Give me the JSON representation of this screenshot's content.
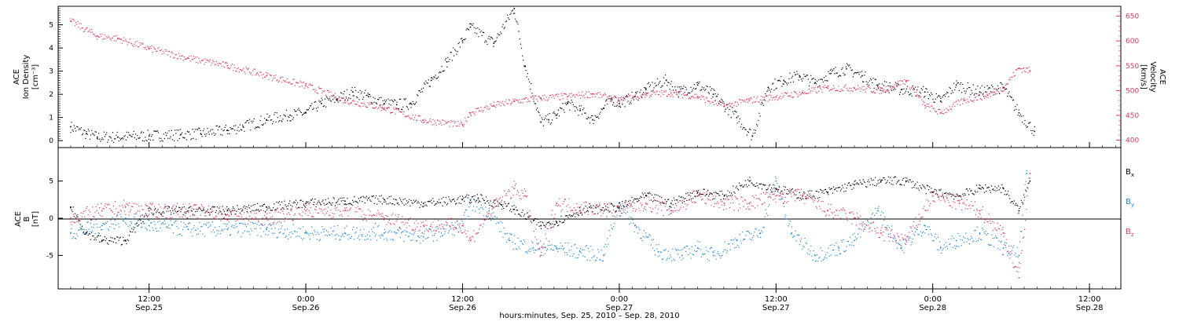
{
  "chart_data": [
    {
      "type": "scatter",
      "panel": "top",
      "ylabel_left": [
        "ACE",
        "Ion Density",
        "[cm⁻³]"
      ],
      "ylabel_right": [
        "ACE",
        "Velocity",
        "[km/s]"
      ],
      "ylim_left": [
        -0.3,
        5.8
      ],
      "ylim_right": [
        385,
        670
      ],
      "yticks_left": [
        "0",
        "1",
        "2",
        "3",
        "4",
        "5"
      ],
      "yticks_right": [
        "400",
        "450",
        "500",
        "550",
        "600",
        "650"
      ],
      "series": [
        {
          "color": "#000000",
          "axis": "left",
          "x": [
            -0.5,
            -0.4,
            -0.33,
            -0.2,
            0,
            0.2,
            0.33,
            0.5,
            0.6,
            0.75,
            0.9,
            1,
            1.1,
            1.2,
            1.3,
            1.4,
            1.5,
            1.58,
            1.67,
            1.8,
            1.9,
            2,
            2.05,
            2.2,
            2.33,
            2.4,
            2.5,
            2.55,
            2.6,
            2.67,
            2.75,
            2.83,
            2.9,
            2.95,
            3,
            3.1,
            3.17,
            3.3,
            3.38,
            3.5,
            3.6,
            3.75,
            3.85,
            3.95,
            4.05,
            4.15,
            4.25,
            4.35,
            4.45,
            4.55,
            4.65,
            4.8,
            4.95,
            5.05,
            5.15,
            5.3,
            5.45,
            5.55,
            5.65
          ],
          "values": [
            0.6,
            0.3,
            0.15,
            0.15,
            0.2,
            0.25,
            0.3,
            0.45,
            0.6,
            0.9,
            1.1,
            1.2,
            1.6,
            1.8,
            2.1,
            1.9,
            1.6,
            1.55,
            1.6,
            2.6,
            3.4,
            4.3,
            4.9,
            4.2,
            5.7,
            3.2,
            0.8,
            0.9,
            1.1,
            1.6,
            1.3,
            0.9,
            1.4,
            1.8,
            1.6,
            1.9,
            2.2,
            2.6,
            2.1,
            2.4,
            2.0,
            1.0,
            0.2,
            2.3,
            2.6,
            2.8,
            2.5,
            2.9,
            3.1,
            2.8,
            2.4,
            2.2,
            2.1,
            1.7,
            2.4,
            2.1,
            2.3,
            1.2,
            0.4
          ]
        },
        {
          "color": "#e8345f",
          "axis": "right",
          "x": [
            -0.5,
            -0.33,
            -0.2,
            0,
            0.25,
            0.5,
            0.75,
            1,
            1.25,
            1.5,
            1.75,
            2,
            2.05,
            2.2,
            2.33,
            2.5,
            2.67,
            2.83,
            3,
            3.17,
            3.33,
            3.5,
            3.67,
            3.83,
            4,
            4.17,
            4.33,
            4.5,
            4.67,
            4.83,
            4.95,
            5.05,
            5.2,
            5.35,
            5.45,
            5.55,
            5.62
          ],
          "values": [
            640,
            610,
            605,
            585,
            565,
            550,
            530,
            510,
            480,
            465,
            440,
            430,
            455,
            470,
            478,
            485,
            488,
            493,
            480,
            492,
            495,
            488,
            468,
            480,
            487,
            495,
            505,
            505,
            500,
            520,
            470,
            455,
            480,
            490,
            505,
            545,
            540
          ]
        }
      ]
    },
    {
      "type": "scatter",
      "panel": "bottom",
      "ylabel_left": [
        "ACE",
        "B",
        "[nT]"
      ],
      "ylim": [
        -9.5,
        9.5
      ],
      "yticks": [
        "-5",
        "0",
        "5"
      ],
      "legend": [
        "Bx",
        "By",
        "Bz"
      ],
      "legend_position": "right",
      "series": [
        {
          "name": "Bx",
          "color": "#000000",
          "x": [
            -0.5,
            -0.4,
            -0.3,
            -0.15,
            0,
            0.25,
            0.5,
            0.75,
            1,
            1.25,
            1.5,
            1.75,
            2,
            2.1,
            2.25,
            2.33,
            2.5,
            2.6,
            2.75,
            3,
            3.17,
            3.33,
            3.5,
            3.67,
            3.83,
            4,
            4.17,
            4.33,
            4.5,
            4.67,
            4.83,
            5,
            5.17,
            5.3,
            5.45,
            5.55,
            5.62
          ],
          "values": [
            1.5,
            -2,
            -3,
            -3,
            1,
            1,
            1,
            1.5,
            2,
            2.3,
            2.5,
            2,
            2.5,
            2.7,
            1.8,
            1.2,
            -1,
            -0.5,
            1,
            1.5,
            3,
            2,
            3.5,
            3,
            5,
            4,
            3,
            3.5,
            4.5,
            5,
            5,
            3.5,
            3,
            4,
            4,
            1,
            5
          ]
        },
        {
          "name": "By",
          "color": "#1a86e0",
          "x": [
            -0.5,
            -0.3,
            -0.15,
            0,
            0.25,
            0.5,
            0.75,
            1,
            1.25,
            1.5,
            1.75,
            2,
            2.05,
            2.17,
            2.3,
            2.45,
            2.6,
            2.75,
            2.9,
            3,
            3.1,
            3.25,
            3.4,
            3.5,
            3.6,
            3.75,
            3.9,
            4,
            4.1,
            4.25,
            4.4,
            4.5,
            4.65,
            4.8,
            4.95,
            5.05,
            5.15,
            5.3,
            5.45,
            5.55,
            5.6
          ],
          "values": [
            -2,
            -1,
            0,
            -1,
            -1.5,
            -1.5,
            -1.5,
            -2,
            -2,
            -2,
            -2.5,
            -1,
            2,
            1,
            -3,
            -4,
            -4,
            -4.5,
            -5,
            2,
            -1,
            -4.5,
            -5,
            -4,
            -5,
            -3,
            -2,
            5,
            -2,
            -5,
            -4,
            -3,
            1,
            -4,
            -1,
            -4,
            -3,
            -2,
            -4,
            -5,
            6
          ]
        },
        {
          "name": "Bz",
          "color": "#e8345f",
          "x": [
            -0.5,
            -0.3,
            -0.15,
            0,
            0.25,
            0.5,
            0.75,
            1,
            1.25,
            1.5,
            1.75,
            2,
            2.05,
            2.2,
            2.33,
            2.4,
            2.5,
            2.6,
            2.75,
            3,
            3.17,
            3.33,
            3.5,
            3.67,
            3.83,
            4,
            4.17,
            4.33,
            4.5,
            4.67,
            4.83,
            5,
            5.17,
            5.3,
            5.45,
            5.55,
            5.62
          ],
          "values": [
            0,
            1,
            1.5,
            1,
            1,
            0.5,
            0,
            1,
            1,
            0,
            -1,
            -1,
            -3,
            1.5,
            4,
            3,
            -5,
            2,
            1.5,
            1,
            2,
            1,
            3,
            2,
            2,
            3,
            3,
            1,
            0,
            -2,
            -3,
            3,
            2,
            1,
            -2,
            -8,
            6
          ]
        }
      ]
    }
  ],
  "x_axis": {
    "ticks": [
      {
        "x": 0,
        "time": "12:00",
        "date": "Sep.25"
      },
      {
        "x": 1,
        "time": "0:00",
        "date": "Sep.26"
      },
      {
        "x": 2,
        "time": "12:00",
        "date": "Sep.26"
      },
      {
        "x": 3,
        "time": "0:00",
        "date": "Sep.27"
      },
      {
        "x": 4,
        "time": "12:00",
        "date": "Sep.27"
      },
      {
        "x": 5,
        "time": "0:00",
        "date": "Sep.28"
      },
      {
        "x": 6,
        "time": "12:00",
        "date": "Sep.28"
      }
    ],
    "range": [
      -0.58,
      6.2
    ],
    "xlabel": "hours:minutes, Sep. 25, 2010 – Sep. 28, 2010"
  },
  "legend_labels": {
    "bx": "B",
    "bx_sub": "x",
    "by": "B",
    "by_sub": "y",
    "bz": "B",
    "bz_sub": "z"
  },
  "colors": {
    "black": "#000000",
    "pink": "#e8345f",
    "blue": "#1a86e0"
  }
}
